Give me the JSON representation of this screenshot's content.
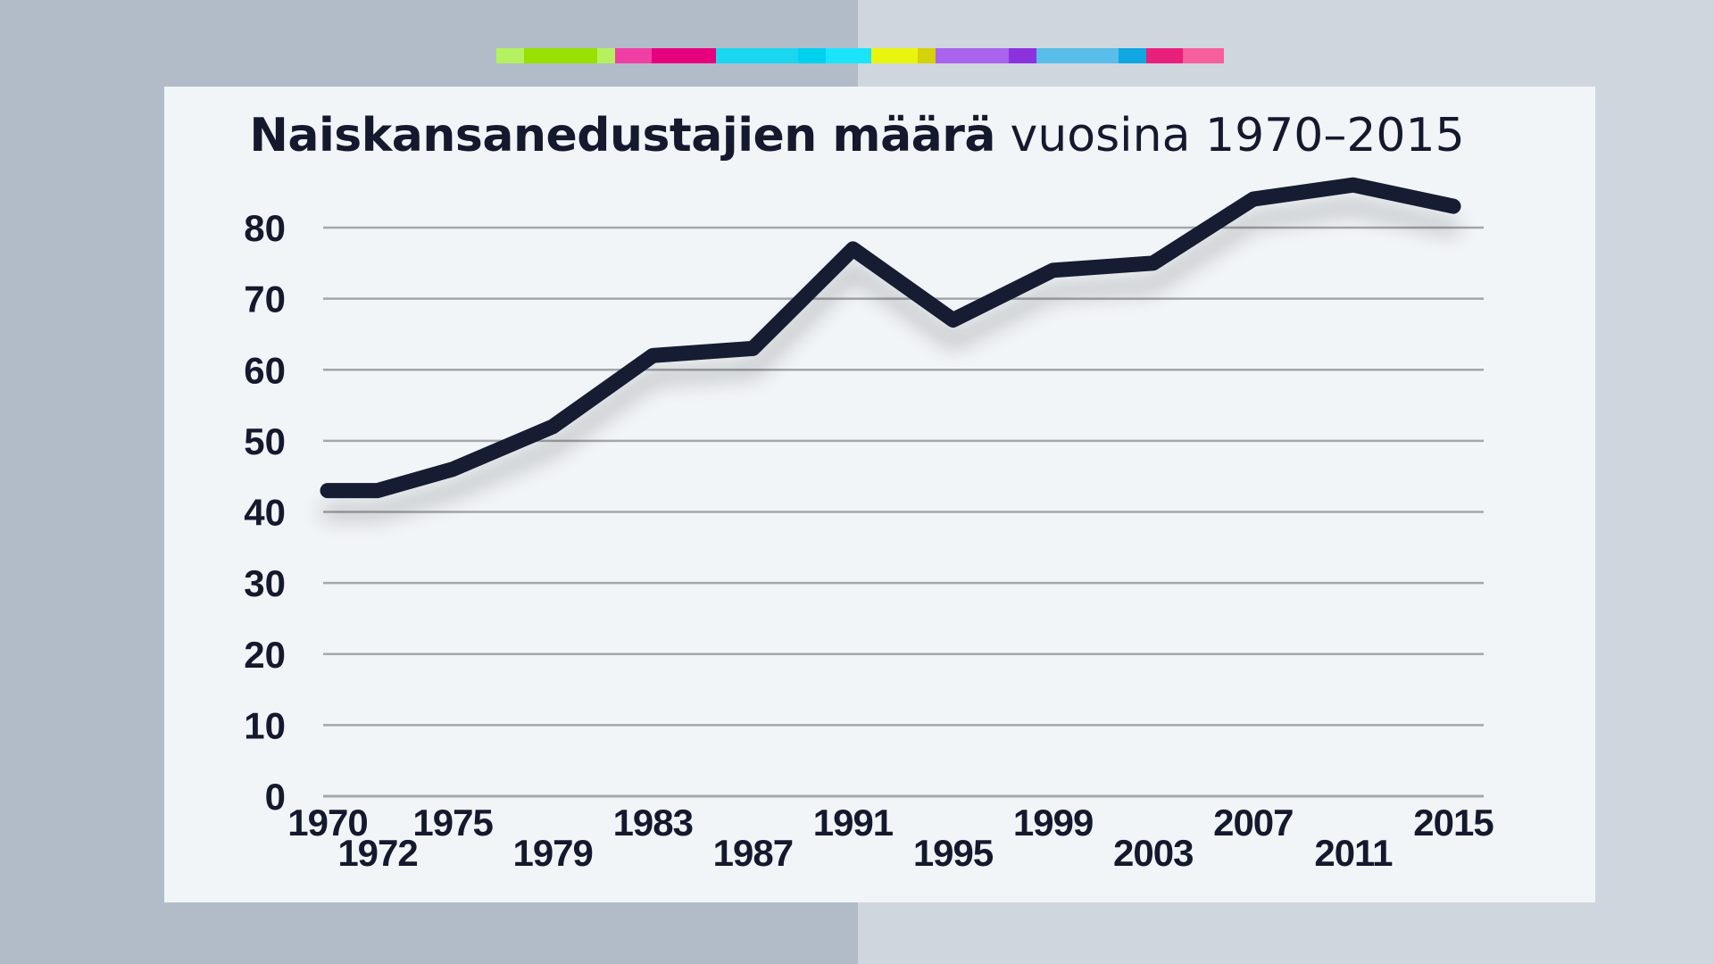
{
  "colors": {
    "line": "#161b30",
    "grid": "#a3a6ab",
    "text": "#15192e",
    "strip": [
      "#b3f25e",
      "#97e000",
      "#b3f25e",
      "#f03fa4",
      "#e6007e",
      "#1ad6ef",
      "#00d1ef",
      "#1ae4f9",
      "#eaf50d",
      "#d5d10b",
      "#a963ed",
      "#8c32dd",
      "#58bde9",
      "#10a6e2",
      "#e8207b",
      "#f55f9c"
    ]
  },
  "chart_data": {
    "type": "line",
    "title": "Naiskansanedustajien määrä",
    "subtitle": "vuosina 1970–2015",
    "xlabel": "",
    "ylabel": "",
    "ylim": [
      0,
      80
    ],
    "yticks": [
      "0",
      "10",
      "20",
      "30",
      "40",
      "50",
      "60",
      "70",
      "80"
    ],
    "grid": true,
    "legend": "none",
    "x": [
      "1970",
      "1972",
      "1975",
      "1979",
      "1983",
      "1987",
      "1991",
      "1995",
      "1999",
      "2003",
      "2007",
      "2011",
      "2015"
    ],
    "series": [
      {
        "values": [
          43,
          43,
          46,
          52,
          62,
          63,
          77,
          67,
          74,
          75,
          84,
          86,
          83
        ]
      }
    ]
  }
}
